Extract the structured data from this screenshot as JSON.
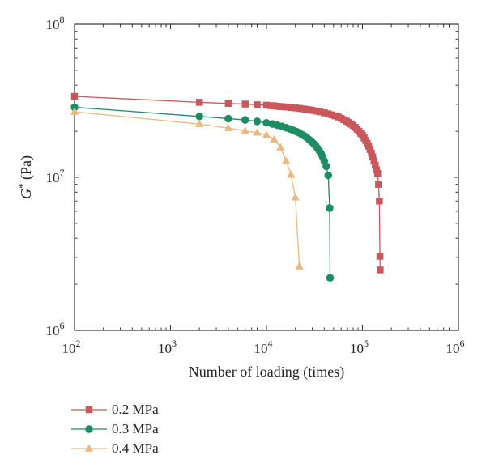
{
  "chart_data": {
    "type": "line",
    "x_scale": "log",
    "y_scale": "log",
    "xlim": [
      100,
      1000000
    ],
    "ylim": [
      1000000,
      100000000
    ],
    "xlabel": "Number of loading (times)",
    "ylabel": {
      "symbol": "G",
      "superscript": "*",
      "unit": " (Pa)"
    },
    "x_ticks": [
      {
        "value": 100,
        "base": "10",
        "exp": "2"
      },
      {
        "value": 1000,
        "base": "10",
        "exp": "3"
      },
      {
        "value": 10000,
        "base": "10",
        "exp": "4"
      },
      {
        "value": 100000,
        "base": "10",
        "exp": "5"
      },
      {
        "value": 1000000,
        "base": "10",
        "exp": "6"
      }
    ],
    "y_ticks": [
      {
        "value": 1000000,
        "base": "10",
        "exp": "6"
      },
      {
        "value": 10000000,
        "base": "10",
        "exp": "7"
      },
      {
        "value": 100000000,
        "base": "10",
        "exp": "8"
      }
    ],
    "grid": false,
    "legend_position": "bottom-left, below plot",
    "series": [
      {
        "name": "0.2 MPa",
        "color": "#c9575c",
        "marker": "square",
        "points": [
          [
            100,
            33800000
          ],
          [
            2000,
            30900000
          ],
          [
            4000,
            30400000
          ],
          [
            6000,
            30100000
          ],
          [
            8000,
            29800000
          ],
          [
            10000,
            29600000
          ],
          [
            11000,
            29400000
          ],
          [
            12000,
            29300000
          ],
          [
            13000,
            29100000
          ],
          [
            14000,
            29000000
          ],
          [
            15000,
            28900000
          ],
          [
            16000,
            28800000
          ],
          [
            18000,
            28600000
          ],
          [
            20000,
            28400000
          ],
          [
            22000,
            28200000
          ],
          [
            24000,
            28000000
          ],
          [
            26000,
            27800000
          ],
          [
            28000,
            27600000
          ],
          [
            30000,
            27400000
          ],
          [
            33000,
            27100000
          ],
          [
            36000,
            26800000
          ],
          [
            40000,
            26400000
          ],
          [
            44000,
            26000000
          ],
          [
            48000,
            25600000
          ],
          [
            52000,
            25200000
          ],
          [
            56000,
            24800000
          ],
          [
            60000,
            24300000
          ],
          [
            64000,
            23800000
          ],
          [
            68000,
            23300000
          ],
          [
            72000,
            22800000
          ],
          [
            76000,
            22300000
          ],
          [
            80000,
            21800000
          ],
          [
            84000,
            21200000
          ],
          [
            88000,
            20600000
          ],
          [
            92000,
            20000000
          ],
          [
            96000,
            19400000
          ],
          [
            100000,
            18800000
          ],
          [
            104000,
            18100000
          ],
          [
            108000,
            17400000
          ],
          [
            112000,
            16700000
          ],
          [
            116000,
            16000000
          ],
          [
            120000,
            15200000
          ],
          [
            124000,
            14400000
          ],
          [
            128000,
            13600000
          ],
          [
            132000,
            12800000
          ],
          [
            136000,
            12000000
          ],
          [
            140000,
            11200000
          ],
          [
            144000,
            10600000
          ],
          [
            147000,
            9000000
          ],
          [
            150000,
            7000000
          ],
          [
            152000,
            3050000
          ],
          [
            153000,
            2480000
          ]
        ]
      },
      {
        "name": "0.3 MPa",
        "color": "#1e8c63",
        "marker": "circle",
        "points": [
          [
            100,
            28700000
          ],
          [
            2000,
            25000000
          ],
          [
            4000,
            24200000
          ],
          [
            6000,
            23700000
          ],
          [
            8000,
            23200000
          ],
          [
            10000,
            22700000
          ],
          [
            11500,
            22300000
          ],
          [
            13000,
            21900000
          ],
          [
            14500,
            21500000
          ],
          [
            16000,
            21100000
          ],
          [
            17500,
            20700000
          ],
          [
            19000,
            20300000
          ],
          [
            20500,
            19900000
          ],
          [
            22000,
            19500000
          ],
          [
            23500,
            19000000
          ],
          [
            25000,
            18600000
          ],
          [
            26500,
            18100000
          ],
          [
            28000,
            17600000
          ],
          [
            29500,
            17100000
          ],
          [
            31000,
            16600000
          ],
          [
            32500,
            16100000
          ],
          [
            34000,
            15500000
          ],
          [
            35500,
            14900000
          ],
          [
            37000,
            14300000
          ],
          [
            38500,
            13600000
          ],
          [
            40000,
            12800000
          ],
          [
            42000,
            11800000
          ],
          [
            44000,
            10300000
          ],
          [
            45500,
            6300000
          ],
          [
            46000,
            2200000
          ]
        ]
      },
      {
        "name": "0.4 MPa",
        "color": "#eab981",
        "marker": "triangle",
        "points": [
          [
            100,
            26800000
          ],
          [
            2000,
            22300000
          ],
          [
            4000,
            21000000
          ],
          [
            6000,
            20100000
          ],
          [
            8000,
            19600000
          ],
          [
            10000,
            18900000
          ],
          [
            12000,
            17700000
          ],
          [
            14000,
            15700000
          ],
          [
            16000,
            12800000
          ],
          [
            18000,
            10400000
          ],
          [
            20000,
            7400000
          ],
          [
            22000,
            2620000
          ]
        ]
      }
    ]
  }
}
